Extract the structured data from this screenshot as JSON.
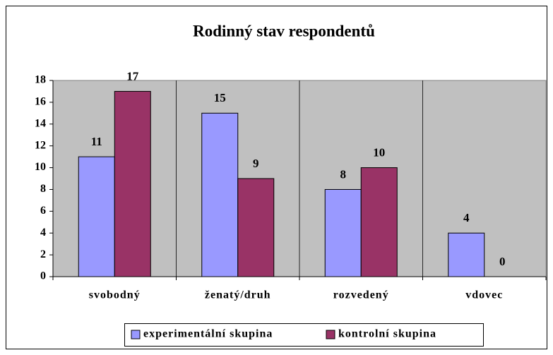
{
  "chart_data": {
    "type": "bar",
    "title": "Rodinný stav respondentů",
    "categories": [
      "svobodný",
      "ženatý/druh",
      "rozvedený",
      "vdovec"
    ],
    "series": [
      {
        "name": "experimentální skupina",
        "color": "#9999ff",
        "values": [
          11,
          15,
          8,
          4
        ]
      },
      {
        "name": "kontrolní skupina",
        "color": "#993366",
        "values": [
          17,
          9,
          10,
          0
        ]
      }
    ],
    "ylim": [
      0,
      18
    ],
    "yticks": [
      0,
      2,
      4,
      6,
      8,
      10,
      12,
      14,
      16,
      18
    ],
    "plot_background": "#c0c0c0",
    "legend": "bottom"
  }
}
